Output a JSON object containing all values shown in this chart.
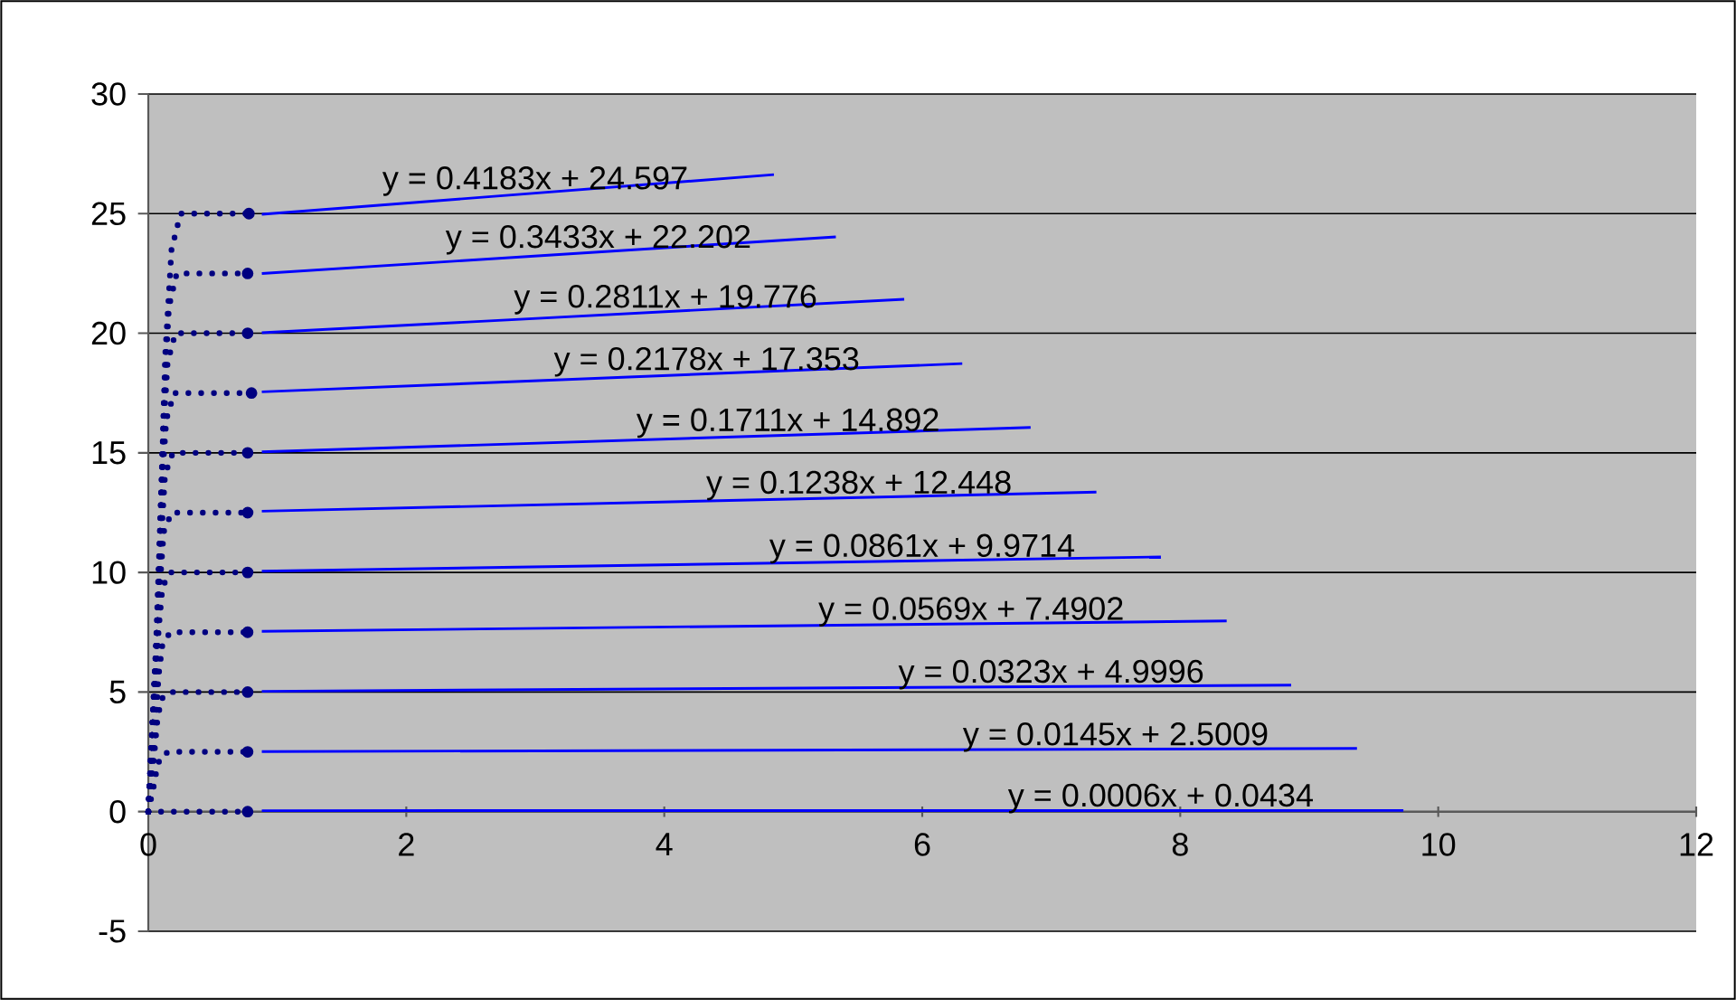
{
  "chart_data": {
    "type": "line",
    "xlim": [
      0,
      12
    ],
    "ylim": [
      -5,
      30
    ],
    "xticks": [
      0,
      2,
      4,
      6,
      8,
      10,
      12
    ],
    "yticks": [
      -5,
      0,
      5,
      10,
      15,
      20,
      25,
      30
    ],
    "grid": "y",
    "marker": "none",
    "series": [
      {
        "color": "#000080",
        "line_style": "dotted",
        "x": [
          0,
          0.04,
          0.07,
          0.1,
          0.16,
          0.3,
          0.45,
          0.61,
          0.77
        ],
        "values": [
          0,
          0,
          0,
          0,
          0,
          0,
          0,
          0,
          0
        ]
      },
      {
        "color": "#000080",
        "line_style": "dotted",
        "x": [
          0,
          0.04,
          0.07,
          0.1,
          0.16,
          0.3,
          0.45,
          0.61,
          0.77
        ],
        "values": [
          0,
          1,
          1.9,
          2.35,
          2.5,
          2.5,
          2.5,
          2.5,
          2.5
        ]
      },
      {
        "color": "#000080",
        "line_style": "dotted",
        "x": [
          0,
          0.04,
          0.07,
          0.1,
          0.16,
          0.3,
          0.45,
          0.61,
          0.77
        ],
        "values": [
          0,
          2,
          3.8,
          4.7,
          5,
          5,
          5,
          5,
          5
        ]
      },
      {
        "color": "#000080",
        "line_style": "dotted",
        "x": [
          0,
          0.05,
          0.08,
          0.11,
          0.17,
          0.3,
          0.45,
          0.61,
          0.77
        ],
        "values": [
          0,
          3,
          5.7,
          7,
          7.5,
          7.5,
          7.5,
          7.5,
          7.5
        ]
      },
      {
        "color": "#000080",
        "line_style": "dotted",
        "x": [
          0,
          0.05,
          0.08,
          0.11,
          0.17,
          0.3,
          0.45,
          0.61,
          0.77
        ],
        "values": [
          0,
          4,
          7.6,
          9.4,
          10,
          10,
          10,
          10,
          10
        ]
      },
      {
        "color": "#000080",
        "line_style": "dotted",
        "x": [
          0,
          0.05,
          0.09,
          0.12,
          0.18,
          0.3,
          0.45,
          0.61,
          0.77
        ],
        "values": [
          0,
          5,
          9.5,
          11.7,
          12.5,
          12.5,
          12.5,
          12.5,
          12.5
        ]
      },
      {
        "color": "#000080",
        "line_style": "dotted",
        "x": [
          0,
          0.06,
          0.1,
          0.13,
          0.19,
          0.3,
          0.45,
          0.61,
          0.77
        ],
        "values": [
          0,
          6,
          11.4,
          14.1,
          15,
          15,
          15,
          15,
          15
        ]
      },
      {
        "color": "#000080",
        "line_style": "dotted",
        "x": [
          0,
          0.06,
          0.1,
          0.14,
          0.2,
          0.35,
          0.5,
          0.65,
          0.8
        ],
        "values": [
          0,
          7,
          13.3,
          16.4,
          17.5,
          17.5,
          17.5,
          17.5,
          17.5
        ]
      },
      {
        "color": "#000080",
        "line_style": "dotted",
        "x": [
          0,
          0.07,
          0.11,
          0.15,
          0.21,
          0.3,
          0.45,
          0.61,
          0.77
        ],
        "values": [
          0,
          8,
          15.2,
          18.8,
          20,
          20,
          20,
          20,
          20
        ]
      },
      {
        "color": "#000080",
        "line_style": "dotted",
        "x": [
          0,
          0.08,
          0.12,
          0.16,
          0.22,
          0.3,
          0.45,
          0.61,
          0.77
        ],
        "values": [
          0,
          9,
          17.1,
          21.1,
          22.5,
          22.5,
          22.5,
          22.5,
          22.5
        ]
      },
      {
        "color": "#000080",
        "line_style": "dotted",
        "x": [
          0,
          0.09,
          0.13,
          0.18,
          0.25,
          0.35,
          0.5,
          0.64,
          0.78
        ],
        "values": [
          0,
          10,
          19,
          23.5,
          25,
          25,
          25,
          25,
          25
        ]
      },
      {
        "color": "#0000ff",
        "line_style": "solid",
        "x": [
          0.88,
          9.73
        ],
        "values": [
          0.04,
          0.05
        ]
      },
      {
        "color": "#0000ff",
        "line_style": "solid",
        "x": [
          0.88,
          9.37
        ],
        "values": [
          2.51,
          2.64
        ]
      },
      {
        "color": "#0000ff",
        "line_style": "solid",
        "x": [
          0.88,
          8.86
        ],
        "values": [
          5.03,
          5.29
        ]
      },
      {
        "color": "#0000ff",
        "line_style": "solid",
        "x": [
          0.88,
          8.36
        ],
        "values": [
          7.54,
          7.97
        ]
      },
      {
        "color": "#0000ff",
        "line_style": "solid",
        "x": [
          0.88,
          7.85
        ],
        "values": [
          10.05,
          10.65
        ]
      },
      {
        "color": "#0000ff",
        "line_style": "solid",
        "x": [
          0.88,
          7.35
        ],
        "values": [
          12.56,
          13.36
        ]
      },
      {
        "color": "#0000ff",
        "line_style": "solid",
        "x": [
          0.88,
          6.84
        ],
        "values": [
          15.04,
          16.06
        ]
      },
      {
        "color": "#0000ff",
        "line_style": "solid",
        "x": [
          0.88,
          6.31
        ],
        "values": [
          17.55,
          18.73
        ]
      },
      {
        "color": "#0000ff",
        "line_style": "solid",
        "x": [
          0.88,
          5.86
        ],
        "values": [
          20.02,
          21.42
        ]
      },
      {
        "color": "#0000ff",
        "line_style": "solid",
        "x": [
          0.88,
          5.33
        ],
        "values": [
          22.5,
          24.03
        ]
      },
      {
        "color": "#0000ff",
        "line_style": "solid",
        "x": [
          0.88,
          4.85
        ],
        "values": [
          24.97,
          26.63
        ]
      }
    ],
    "annotations": [
      {
        "text": "y = 0.4183x + 24.597",
        "x": 3.0,
        "y": 25.852
      },
      {
        "text": "y = 0.3433x + 22.202",
        "x": 3.49,
        "y": 23.4
      },
      {
        "text": "y = 0.2811x + 19.776",
        "x": 4.01,
        "y": 20.903
      },
      {
        "text": "y = 0.2178x + 17.353",
        "x": 4.33,
        "y": 18.296
      },
      {
        "text": "y = 0.1711x + 14.892",
        "x": 4.96,
        "y": 15.741
      },
      {
        "text": "y = 0.1238x + 12.448",
        "x": 5.51,
        "y": 13.13
      },
      {
        "text": "y = 0.0861x + 9.9714",
        "x": 6.0,
        "y": 10.488
      },
      {
        "text": "y = 0.0569x + 7.4902",
        "x": 6.38,
        "y": 7.853
      },
      {
        "text": "y = 0.0323x + 4.9996",
        "x": 7.0,
        "y": 5.226
      },
      {
        "text": "y = 0.0145x + 2.5009",
        "x": 7.5,
        "y": 2.61
      },
      {
        "text": "y = 0.0006x + 0.0434",
        "x": 7.85,
        "y": 0.048
      }
    ]
  }
}
